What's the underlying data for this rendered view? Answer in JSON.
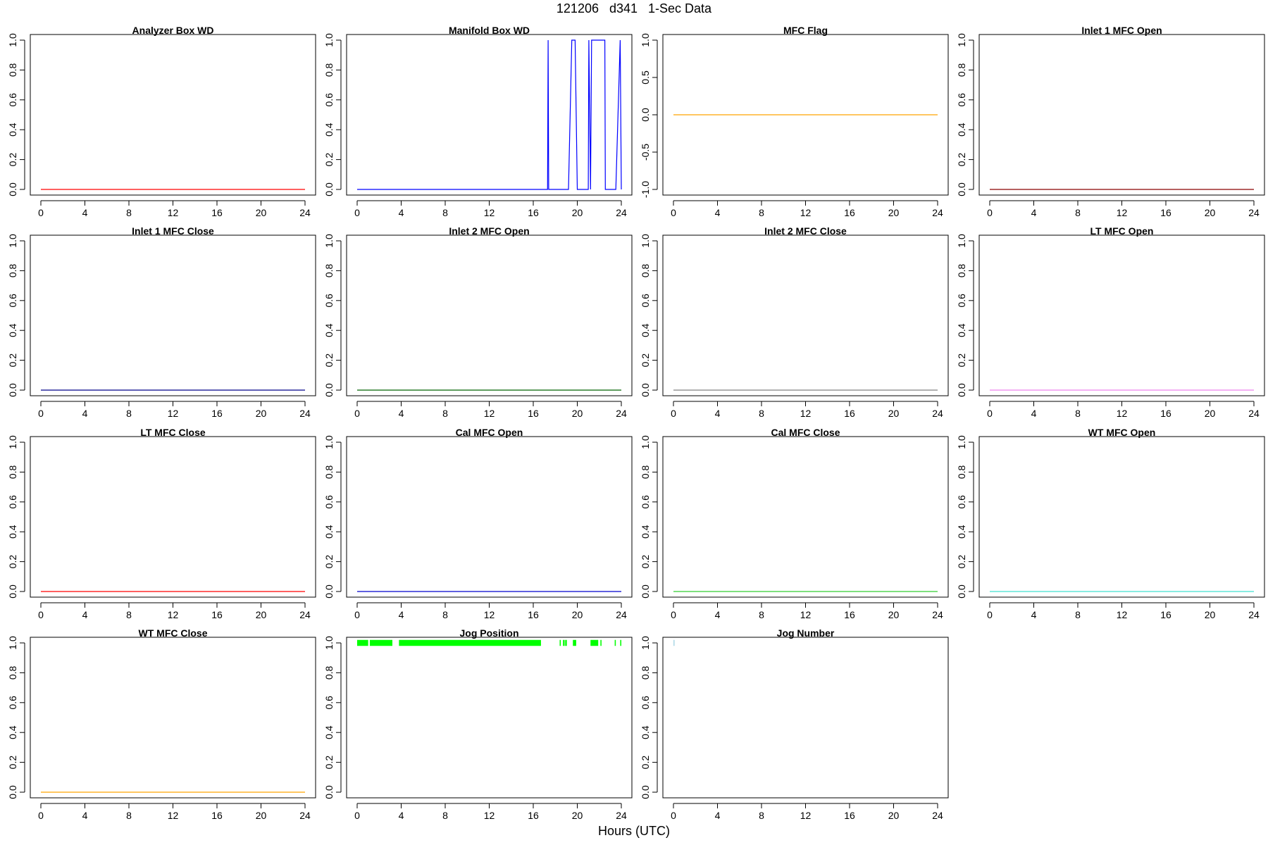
{
  "figure": {
    "title": "121206   d341   1-Sec Data",
    "xlabel": "Hours (UTC)"
  },
  "chart_data": [
    {
      "type": "line",
      "title": "Analyzer Box WD",
      "color": "#ff0000",
      "xlim": [
        0,
        24
      ],
      "ylim": [
        0,
        1
      ],
      "xticks": [
        0,
        4,
        8,
        12,
        16,
        20,
        24
      ],
      "yticks": [
        "0.0",
        "0.2",
        "0.4",
        "0.6",
        "0.8",
        "1.0"
      ],
      "series": [
        {
          "x": [
            0,
            24
          ],
          "y": [
            0,
            0
          ]
        }
      ]
    },
    {
      "type": "line",
      "title": "Manifold Box WD",
      "color": "#0000ff",
      "xlim": [
        0,
        24
      ],
      "ylim": [
        0,
        1
      ],
      "xticks": [
        0,
        4,
        8,
        12,
        16,
        20,
        24
      ],
      "yticks": [
        "0.0",
        "0.2",
        "0.4",
        "0.6",
        "0.8",
        "1.0"
      ],
      "series": [
        {
          "x": [
            0,
            17.3,
            17.35,
            17.4,
            19.2,
            19.5,
            19.8,
            20.0,
            21.0,
            21.05,
            21.2,
            21.3,
            22.5,
            22.55,
            23.5,
            23.9,
            24.0
          ],
          "y": [
            0,
            0,
            1,
            0,
            0,
            1,
            1,
            0,
            0,
            1,
            0,
            1,
            1,
            0,
            0,
            1,
            0
          ]
        }
      ]
    },
    {
      "type": "line",
      "title": "MFC Flag",
      "color": "#ffa500",
      "xlim": [
        0,
        24
      ],
      "ylim": [
        -1,
        1
      ],
      "xticks": [
        0,
        4,
        8,
        12,
        16,
        20,
        24
      ],
      "yticks": [
        "-1.0",
        "-0.5",
        "0.0",
        "0.5",
        "1.0"
      ],
      "series": [
        {
          "x": [
            0,
            24
          ],
          "y": [
            0,
            0
          ]
        }
      ]
    },
    {
      "type": "line",
      "title": "Inlet 1 MFC Open",
      "color": "#8b0000",
      "xlim": [
        0,
        24
      ],
      "ylim": [
        0,
        1
      ],
      "xticks": [
        0,
        4,
        8,
        12,
        16,
        20,
        24
      ],
      "yticks": [
        "0.0",
        "0.2",
        "0.4",
        "0.6",
        "0.8",
        "1.0"
      ],
      "series": [
        {
          "x": [
            0,
            24
          ],
          "y": [
            0,
            0
          ]
        }
      ]
    },
    {
      "type": "line",
      "title": "Inlet 1 MFC Close",
      "color": "#00008b",
      "xlim": [
        0,
        24
      ],
      "ylim": [
        0,
        1
      ],
      "xticks": [
        0,
        4,
        8,
        12,
        16,
        20,
        24
      ],
      "yticks": [
        "0.0",
        "0.2",
        "0.4",
        "0.6",
        "0.8",
        "1.0"
      ],
      "series": [
        {
          "x": [
            0,
            24
          ],
          "y": [
            0,
            0
          ]
        }
      ]
    },
    {
      "type": "line",
      "title": "Inlet 2 MFC Open",
      "color": "#006400",
      "xlim": [
        0,
        24
      ],
      "ylim": [
        0,
        1
      ],
      "xticks": [
        0,
        4,
        8,
        12,
        16,
        20,
        24
      ],
      "yticks": [
        "0.0",
        "0.2",
        "0.4",
        "0.6",
        "0.8",
        "1.0"
      ],
      "series": [
        {
          "x": [
            0,
            24
          ],
          "y": [
            0,
            0
          ]
        }
      ]
    },
    {
      "type": "line",
      "title": "Inlet 2 MFC Close",
      "color": "#808080",
      "xlim": [
        0,
        24
      ],
      "ylim": [
        0,
        1
      ],
      "xticks": [
        0,
        4,
        8,
        12,
        16,
        20,
        24
      ],
      "yticks": [
        "0.0",
        "0.2",
        "0.4",
        "0.6",
        "0.8",
        "1.0"
      ],
      "series": [
        {
          "x": [
            0,
            24
          ],
          "y": [
            0,
            0
          ]
        }
      ]
    },
    {
      "type": "line",
      "title": "LT MFC Open",
      "color": "#ee82ee",
      "xlim": [
        0,
        24
      ],
      "ylim": [
        0,
        1
      ],
      "xticks": [
        0,
        4,
        8,
        12,
        16,
        20,
        24
      ],
      "yticks": [
        "0.0",
        "0.2",
        "0.4",
        "0.6",
        "0.8",
        "1.0"
      ],
      "series": [
        {
          "x": [
            0,
            24
          ],
          "y": [
            0,
            0
          ]
        }
      ]
    },
    {
      "type": "line",
      "title": "LT MFC Close",
      "color": "#ff0000",
      "xlim": [
        0,
        24
      ],
      "ylim": [
        0,
        1
      ],
      "xticks": [
        0,
        4,
        8,
        12,
        16,
        20,
        24
      ],
      "yticks": [
        "0.0",
        "0.2",
        "0.4",
        "0.6",
        "0.8",
        "1.0"
      ],
      "series": [
        {
          "x": [
            0,
            24
          ],
          "y": [
            0,
            0
          ]
        }
      ]
    },
    {
      "type": "line",
      "title": "Cal MFC Open",
      "color": "#0000cd",
      "xlim": [
        0,
        24
      ],
      "ylim": [
        0,
        1
      ],
      "xticks": [
        0,
        4,
        8,
        12,
        16,
        20,
        24
      ],
      "yticks": [
        "0.0",
        "0.2",
        "0.4",
        "0.6",
        "0.8",
        "1.0"
      ],
      "series": [
        {
          "x": [
            0,
            24
          ],
          "y": [
            0,
            0
          ]
        }
      ]
    },
    {
      "type": "line",
      "title": "Cal MFC Close",
      "color": "#32cd32",
      "xlim": [
        0,
        24
      ],
      "ylim": [
        0,
        1
      ],
      "xticks": [
        0,
        4,
        8,
        12,
        16,
        20,
        24
      ],
      "yticks": [
        "0.0",
        "0.2",
        "0.4",
        "0.6",
        "0.8",
        "1.0"
      ],
      "series": [
        {
          "x": [
            0,
            24
          ],
          "y": [
            0,
            0
          ]
        }
      ]
    },
    {
      "type": "line",
      "title": "WT MFC Open",
      "color": "#40e0d0",
      "xlim": [
        0,
        24
      ],
      "ylim": [
        0,
        1
      ],
      "xticks": [
        0,
        4,
        8,
        12,
        16,
        20,
        24
      ],
      "yticks": [
        "0.0",
        "0.2",
        "0.4",
        "0.6",
        "0.8",
        "1.0"
      ],
      "series": [
        {
          "x": [
            0,
            24
          ],
          "y": [
            0,
            0
          ]
        }
      ]
    },
    {
      "type": "line",
      "title": "WT MFC Close",
      "color": "#ffa500",
      "xlim": [
        0,
        24
      ],
      "ylim": [
        0,
        1
      ],
      "xticks": [
        0,
        4,
        8,
        12,
        16,
        20,
        24
      ],
      "yticks": [
        "0.0",
        "0.2",
        "0.4",
        "0.6",
        "0.8",
        "1.0"
      ],
      "series": [
        {
          "x": [
            0,
            24
          ],
          "y": [
            0,
            0
          ]
        }
      ]
    },
    {
      "type": "bar",
      "title": "Jog Position",
      "color": "#00ff00",
      "xlim": [
        0,
        24
      ],
      "ylim": [
        0,
        1
      ],
      "xticks": [
        0,
        4,
        8,
        12,
        16,
        20,
        24
      ],
      "yticks": [
        "0.0",
        "0.2",
        "0.4",
        "0.6",
        "0.8",
        "1.0"
      ],
      "ybase": 0.98,
      "ytop": 1.02,
      "segments": [
        [
          0,
          1.0
        ],
        [
          1.15,
          3.2
        ],
        [
          3.8,
          16.7
        ],
        [
          18.4,
          18.5
        ],
        [
          18.7,
          18.85
        ],
        [
          18.9,
          19.05
        ],
        [
          19.6,
          19.9
        ],
        [
          21.2,
          21.9
        ],
        [
          22.1,
          22.2
        ],
        [
          23.4,
          23.5
        ],
        [
          23.9,
          24.0
        ]
      ]
    },
    {
      "type": "bar",
      "title": "Jog Number",
      "color": "#add8e6",
      "xlim": [
        0,
        24
      ],
      "ylim": [
        0,
        1
      ],
      "xticks": [
        0,
        4,
        8,
        12,
        16,
        20,
        24
      ],
      "yticks": [
        "0.0",
        "0.2",
        "0.4",
        "0.6",
        "0.8",
        "1.0"
      ],
      "ybase": 0.98,
      "ytop": 1.02,
      "segments": [
        [
          0,
          0.1
        ]
      ]
    }
  ]
}
